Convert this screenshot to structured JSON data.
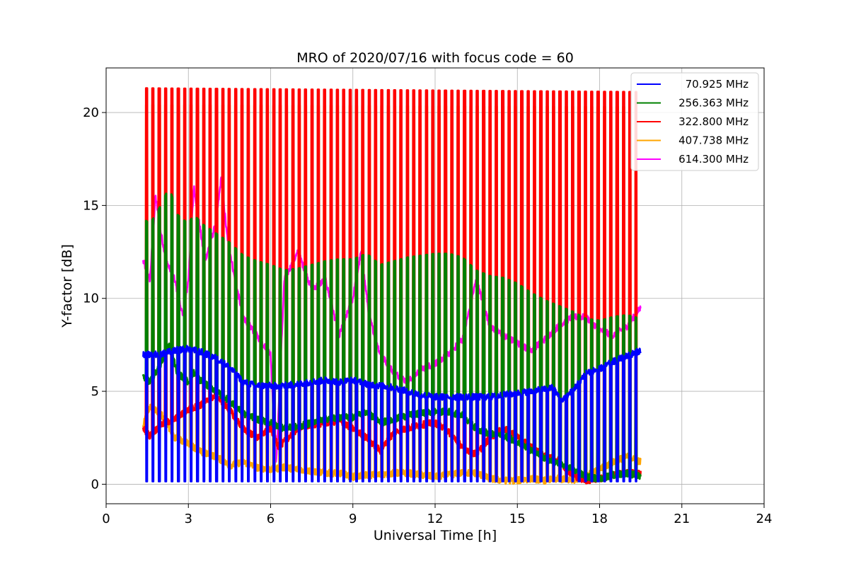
{
  "chart_data": {
    "type": "line",
    "title": "MRO of 2020/07/16 with focus code = 60",
    "xlabel": "Universal Time [h]",
    "ylabel": "Y-factor [dB]",
    "xlim": [
      0,
      24
    ],
    "ylim": [
      -1.05,
      22.4
    ],
    "xticks": [
      0,
      3,
      6,
      9,
      12,
      15,
      18,
      21,
      24
    ],
    "yticks": [
      0,
      5,
      10,
      15,
      20
    ],
    "grid": true,
    "legend_position": "top-right",
    "cycles": {
      "start": 1.45,
      "end": 19.3,
      "period": 0.232,
      "pulse_width": 0.05
    },
    "series": [
      {
        "name": "70.925 MHz",
        "color": "#0000ff",
        "baseline": [
          [
            1.35,
            7.0
          ],
          [
            2.0,
            7.0
          ],
          [
            2.5,
            7.2
          ],
          [
            3.0,
            7.3
          ],
          [
            3.5,
            7.1
          ],
          [
            4.0,
            6.8
          ],
          [
            4.5,
            6.3
          ],
          [
            5.0,
            5.5
          ],
          [
            5.5,
            5.3
          ],
          [
            6.0,
            5.3
          ],
          [
            6.5,
            5.3
          ],
          [
            7.0,
            5.4
          ],
          [
            7.5,
            5.5
          ],
          [
            8.0,
            5.6
          ],
          [
            8.5,
            5.5
          ],
          [
            9.0,
            5.6
          ],
          [
            9.5,
            5.4
          ],
          [
            10.0,
            5.3
          ],
          [
            10.5,
            5.2
          ],
          [
            11.0,
            5.0
          ],
          [
            11.5,
            4.8
          ],
          [
            12.0,
            4.7
          ],
          [
            12.5,
            4.7
          ],
          [
            13.0,
            4.7
          ],
          [
            13.5,
            4.7
          ],
          [
            14.0,
            4.7
          ],
          [
            14.5,
            4.8
          ],
          [
            15.0,
            4.9
          ],
          [
            15.5,
            5.0
          ],
          [
            16.0,
            5.1
          ],
          [
            16.3,
            5.2
          ],
          [
            16.6,
            4.5
          ],
          [
            17.0,
            5.0
          ],
          [
            17.5,
            6.0
          ],
          [
            18.0,
            6.2
          ],
          [
            18.5,
            6.6
          ],
          [
            19.0,
            6.9
          ],
          [
            19.5,
            7.2
          ]
        ],
        "pulse_peak": [
          [
            1.45,
            2.9
          ],
          [
            3.0,
            2.6
          ],
          [
            4.0,
            2.5
          ],
          [
            5.0,
            1.9
          ],
          [
            6.0,
            1.5
          ],
          [
            8.0,
            1.2
          ],
          [
            10.0,
            1.0
          ],
          [
            12.0,
            0.9
          ],
          [
            14.0,
            0.8
          ],
          [
            16.0,
            0.7
          ],
          [
            19.3,
            0.6
          ]
        ],
        "pulse_floor": 0.15,
        "peak_mode": "absolute",
        "width": 2.6
      },
      {
        "name": "256.363 MHz",
        "color": "#008000",
        "baseline": [
          [
            1.35,
            5.8
          ],
          [
            1.6,
            5.5
          ],
          [
            2.0,
            6.5
          ],
          [
            2.3,
            7.5
          ],
          [
            2.6,
            6.0
          ],
          [
            3.0,
            5.5
          ],
          [
            3.2,
            6.0
          ],
          [
            3.5,
            5.5
          ],
          [
            4.0,
            5.0
          ],
          [
            4.5,
            4.5
          ],
          [
            5.0,
            3.8
          ],
          [
            5.5,
            3.5
          ],
          [
            6.0,
            3.3
          ],
          [
            6.5,
            3.0
          ],
          [
            7.0,
            3.1
          ],
          [
            7.5,
            3.3
          ],
          [
            8.0,
            3.5
          ],
          [
            8.5,
            3.6
          ],
          [
            9.0,
            3.6
          ],
          [
            9.5,
            3.9
          ],
          [
            10.0,
            3.3
          ],
          [
            10.5,
            3.5
          ],
          [
            11.0,
            3.7
          ],
          [
            11.5,
            3.8
          ],
          [
            12.0,
            3.9
          ],
          [
            12.5,
            3.9
          ],
          [
            13.0,
            3.7
          ],
          [
            13.5,
            3.0
          ],
          [
            14.0,
            2.7
          ],
          [
            14.5,
            2.6
          ],
          [
            15.0,
            2.3
          ],
          [
            15.5,
            1.8
          ],
          [
            16.0,
            1.4
          ],
          [
            16.5,
            1.1
          ],
          [
            17.0,
            0.8
          ],
          [
            17.5,
            0.4
          ],
          [
            18.0,
            0.3
          ],
          [
            18.5,
            0.5
          ],
          [
            19.0,
            0.6
          ],
          [
            19.5,
            0.4
          ]
        ],
        "pulse_peak": [
          [
            1.45,
            8.5
          ],
          [
            19.3,
            8.5
          ]
        ],
        "peak_mode": "offset",
        "width": 3.2
      },
      {
        "name": "322.800 MHz",
        "color": "#ff0000",
        "baseline": [
          [
            1.35,
            3.0
          ],
          [
            1.6,
            2.6
          ],
          [
            2.0,
            3.2
          ],
          [
            2.5,
            3.5
          ],
          [
            3.0,
            4.0
          ],
          [
            3.5,
            4.3
          ],
          [
            4.0,
            4.8
          ],
          [
            4.5,
            4.0
          ],
          [
            5.0,
            3.0
          ],
          [
            5.5,
            2.5
          ],
          [
            6.0,
            3.0
          ],
          [
            6.3,
            2.0
          ],
          [
            6.5,
            2.3
          ],
          [
            7.0,
            3.0
          ],
          [
            7.5,
            3.2
          ],
          [
            8.0,
            3.3
          ],
          [
            8.5,
            3.4
          ],
          [
            9.0,
            3.0
          ],
          [
            9.5,
            2.5
          ],
          [
            10.0,
            1.8
          ],
          [
            10.5,
            2.8
          ],
          [
            11.0,
            3.0
          ],
          [
            11.5,
            3.2
          ],
          [
            12.0,
            3.3
          ],
          [
            12.5,
            2.8
          ],
          [
            13.0,
            2.0
          ],
          [
            13.5,
            1.6
          ],
          [
            14.0,
            2.5
          ],
          [
            14.5,
            3.0
          ],
          [
            15.0,
            2.6
          ],
          [
            15.5,
            2.0
          ],
          [
            16.0,
            1.5
          ],
          [
            16.5,
            1.3
          ],
          [
            17.0,
            0.5
          ],
          [
            17.5,
            0.2
          ],
          [
            18.0,
            0.3
          ],
          [
            18.5,
            0.5
          ],
          [
            19.0,
            0.6
          ],
          [
            19.5,
            0.6
          ]
        ],
        "pulse_peak": [
          [
            1.45,
            21.3
          ],
          [
            19.3,
            21.1
          ]
        ],
        "peak_mode": "absolute",
        "width": 3.2
      },
      {
        "name": "407.738 MHz",
        "color": "#ffa500",
        "baseline": [
          [
            1.35,
            3.2
          ],
          [
            1.6,
            4.2
          ],
          [
            2.0,
            3.8
          ],
          [
            2.5,
            2.5
          ],
          [
            3.0,
            2.2
          ],
          [
            3.5,
            1.7
          ],
          [
            4.0,
            1.5
          ],
          [
            4.5,
            1.0
          ],
          [
            5.0,
            1.2
          ],
          [
            5.5,
            0.9
          ],
          [
            6.0,
            0.8
          ],
          [
            6.5,
            0.9
          ],
          [
            7.0,
            0.8
          ],
          [
            7.5,
            0.7
          ],
          [
            8.0,
            0.6
          ],
          [
            8.5,
            0.6
          ],
          [
            9.0,
            0.4
          ],
          [
            9.5,
            0.5
          ],
          [
            10.0,
            0.5
          ],
          [
            10.5,
            0.6
          ],
          [
            11.0,
            0.6
          ],
          [
            11.5,
            0.5
          ],
          [
            12.0,
            0.4
          ],
          [
            12.5,
            0.5
          ],
          [
            13.0,
            0.6
          ],
          [
            13.5,
            0.6
          ],
          [
            14.0,
            0.3
          ],
          [
            14.5,
            0.2
          ],
          [
            15.0,
            0.2
          ],
          [
            15.5,
            0.3
          ],
          [
            16.0,
            0.2
          ],
          [
            16.5,
            0.3
          ],
          [
            17.0,
            0.2
          ],
          [
            17.5,
            0.5
          ],
          [
            18.0,
            0.8
          ],
          [
            18.5,
            1.2
          ],
          [
            19.0,
            1.5
          ],
          [
            19.5,
            1.2
          ]
        ],
        "pulse_peak": [
          [
            1.45,
            20.4
          ],
          [
            19.3,
            20.3
          ]
        ],
        "peak_mode": "absolute",
        "width": 3.2
      },
      {
        "name": "614.300 MHz",
        "color": "#ff00ff",
        "baseline": [
          [
            1.35,
            12.0
          ],
          [
            1.6,
            11.0
          ],
          [
            1.8,
            15.5
          ],
          [
            2.0,
            13.5
          ],
          [
            2.2,
            12.0
          ],
          [
            2.5,
            11.0
          ],
          [
            2.8,
            9.0
          ],
          [
            3.0,
            11.0
          ],
          [
            3.2,
            16.0
          ],
          [
            3.4,
            14.0
          ],
          [
            3.6,
            12.0
          ],
          [
            3.8,
            13.0
          ],
          [
            4.0,
            14.0
          ],
          [
            4.2,
            16.5
          ],
          [
            4.4,
            13.5
          ],
          [
            4.7,
            11.0
          ],
          [
            5.0,
            9.0
          ],
          [
            5.5,
            8.0
          ],
          [
            6.0,
            7.0
          ],
          [
            6.2,
            1.0
          ],
          [
            6.5,
            11.0
          ],
          [
            7.0,
            12.5
          ],
          [
            7.5,
            10.5
          ],
          [
            8.0,
            11.0
          ],
          [
            8.5,
            8.0
          ],
          [
            9.0,
            10.0
          ],
          [
            9.3,
            12.5
          ],
          [
            9.6,
            9.0
          ],
          [
            10.0,
            7.0
          ],
          [
            10.5,
            6.0
          ],
          [
            11.0,
            5.5
          ],
          [
            11.5,
            6.2
          ],
          [
            12.0,
            6.5
          ],
          [
            12.5,
            7.0
          ],
          [
            13.0,
            7.8
          ],
          [
            13.5,
            11.0
          ],
          [
            13.8,
            9.5
          ],
          [
            14.0,
            8.5
          ],
          [
            14.5,
            8.0
          ],
          [
            15.0,
            7.6
          ],
          [
            15.5,
            7.2
          ],
          [
            16.0,
            7.8
          ],
          [
            16.5,
            8.5
          ],
          [
            17.0,
            9.0
          ],
          [
            17.5,
            9.0
          ],
          [
            18.0,
            8.3
          ],
          [
            18.5,
            8.0
          ],
          [
            19.0,
            8.5
          ],
          [
            19.5,
            9.5
          ]
        ],
        "pulse_peak": [
          [
            1.45,
            15.1
          ],
          [
            19.3,
            15.0
          ]
        ],
        "peak_mode": "absolute",
        "width": 2.6
      }
    ]
  }
}
